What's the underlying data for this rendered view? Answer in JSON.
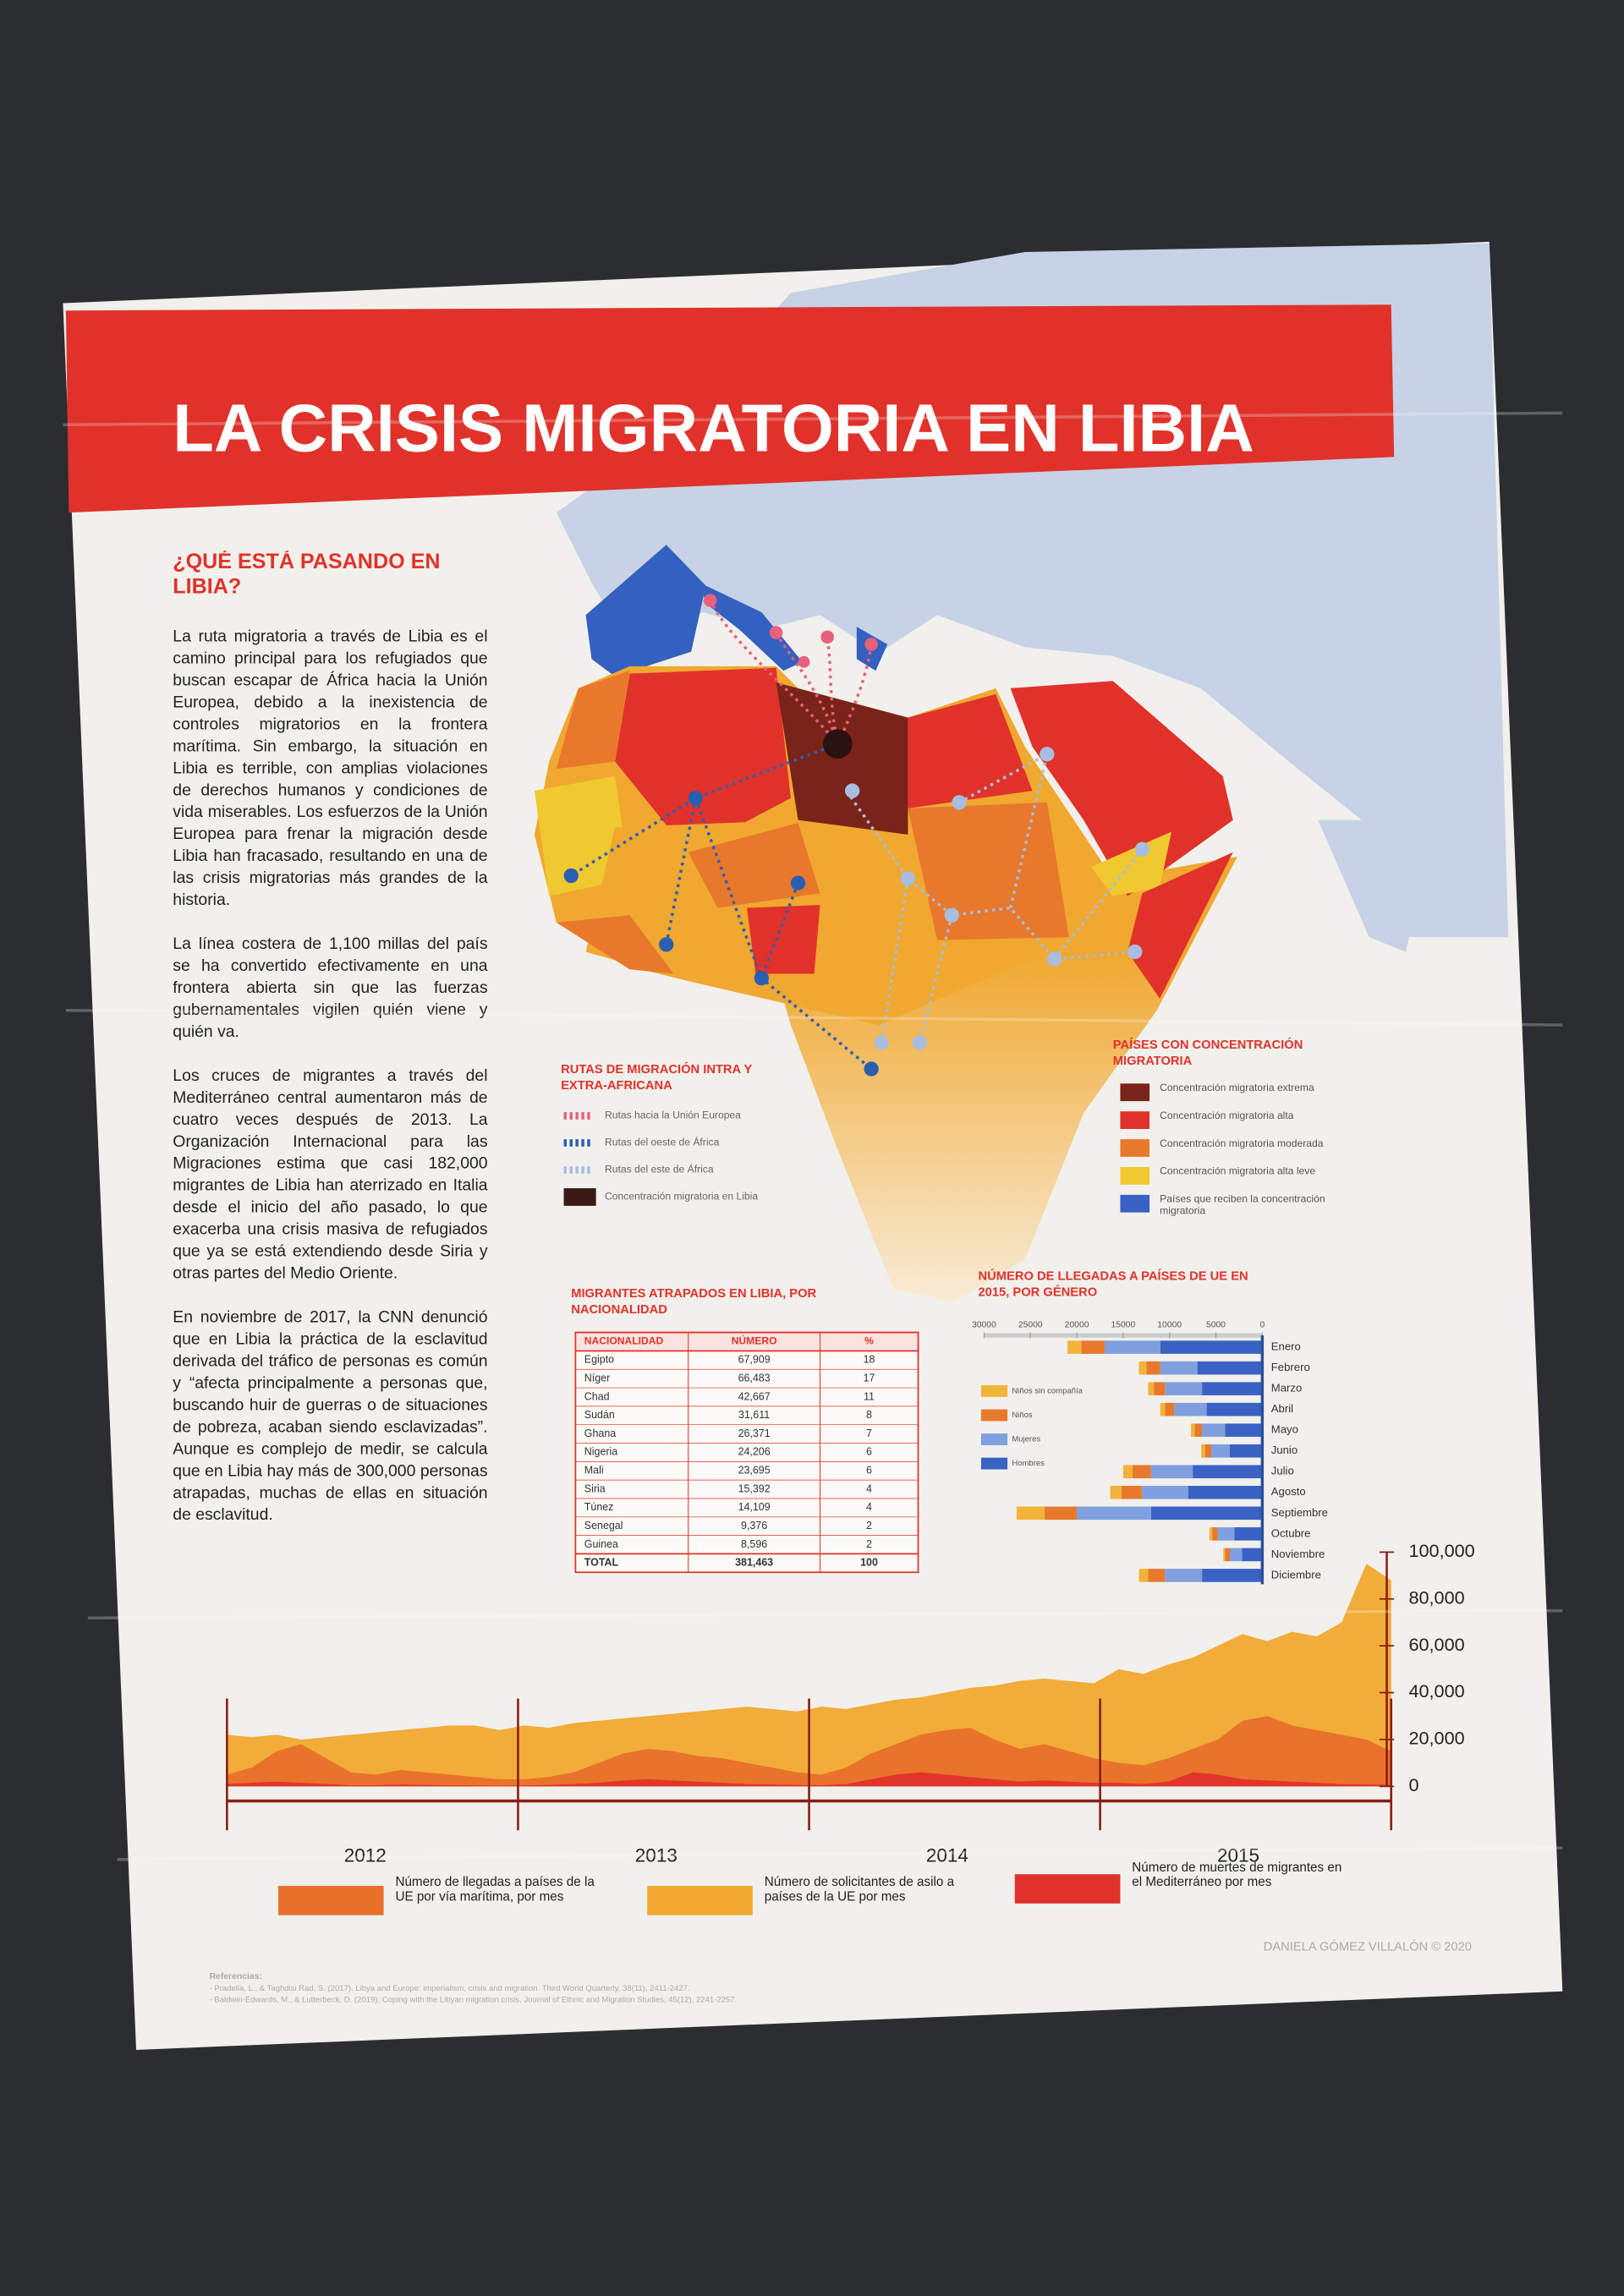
{
  "header": {
    "title": "LA CRISIS MIGRATORIA EN LIBIA"
  },
  "intro": {
    "heading": "¿QUÉ ESTÁ PASANDO EN LIBIA?",
    "paragraphs": [
      "La ruta migratoria a través de Libia es el camino principal para los refugiados que buscan escapar de África hacia la Unión Europea, debido a la inexistencia de controles migratorios en la frontera marítima. Sin embargo, la situación en Libia es terrible, con amplias violaciones de derechos humanos y condiciones de vida miserables. Los esfuerzos de la Unión Europea para frenar la migración desde Libia han fracasado, resultando en una de las crisis migratorias más grandes de la historia.",
      "La línea costera de 1,100 millas del país se ha convertido efectivamente en una frontera abierta sin que las fuerzas gubernamentales vigilen quién viene y quién va.",
      "Los cruces de migrantes a través del Mediterráneo central aumentaron más de cuatro veces después de 2013. La Organización Internacional para las Migraciones estima que casi 182,000 migrantes de Libia han aterrizado en Italia desde el inicio del año pasado, lo que exacerba una crisis masiva de refugiados que ya se está extendiendo desde Siria y otras partes del Medio Oriente.",
      "En noviembre de 2017, la CNN denunció que en Libia la práctica de la esclavitud derivada del tráfico de personas es común y “afecta principalmente a personas que, buscando huir de guerras o de situaciones de pobreza, acaban siendo esclavizadas”. Aunque es complejo de medir, se calcula que en Libia hay más de 300,000 personas atrapadas, muchas de ellas en situación de esclavitud."
    ]
  },
  "map": {
    "routes_legend": {
      "title": "RUTAS DE MIGRACIÓN INTRA Y EXTRA-AFRICANA",
      "items": [
        {
          "label": "Rutas hacia la Unión Europea",
          "color": "#e8607a"
        },
        {
          "label": "Rutas del oeste de África",
          "color": "#2a5fb0"
        },
        {
          "label": "Rutas del este de África",
          "color": "#a8bde0"
        },
        {
          "label": "Concentración migratoria en Libia",
          "color": "#3a1a14"
        }
      ]
    },
    "countries_legend": {
      "title": "PAÍSES CON CONCENTRACIÓN MIGRATORIA",
      "items": [
        {
          "label": "Concentración migratoria extrema",
          "color": "#7a2318"
        },
        {
          "label": "Concentración migratoria alta",
          "color": "#e0322a"
        },
        {
          "label": "Concentración migratoria moderada",
          "color": "#e8782c"
        },
        {
          "label": "Concentración migratoria alta leve",
          "color": "#f0c830"
        },
        {
          "label": "Países que reciben la concentración migratoria",
          "color": "#3a62c4"
        }
      ]
    }
  },
  "table": {
    "title": "MIGRANTES ATRAPADOS EN LIBIA, POR NACIONALIDAD",
    "header": [
      "NACIONALIDAD",
      "NÚMERO",
      "%"
    ],
    "rows": [
      [
        "Egipto",
        "67,909",
        "18"
      ],
      [
        "Níger",
        "66,483",
        "17"
      ],
      [
        "Chad",
        "42,667",
        "11"
      ],
      [
        "Sudán",
        "31,611",
        "8"
      ],
      [
        "Ghana",
        "26,371",
        "7"
      ],
      [
        "Nigeria",
        "24,206",
        "6"
      ],
      [
        "Mali",
        "23,695",
        "6"
      ],
      [
        "Siria",
        "15,392",
        "4"
      ],
      [
        "Túnez",
        "14,109",
        "4"
      ],
      [
        "Senegal",
        "9,376",
        "2"
      ],
      [
        "Guinea",
        "8,596",
        "2"
      ],
      [
        "TOTAL",
        "381,463",
        "100"
      ]
    ]
  },
  "chart_data": [
    {
      "type": "bar",
      "title": "NÚMERO DE LLEGADAS A PAÍSES DE UE EN 2015, POR GÉNERO",
      "stacked": true,
      "x_reversed": true,
      "categories": [
        "Enero",
        "Febrero",
        "Marzo",
        "Abril",
        "Mayo",
        "Junio",
        "Julio",
        "Agosto",
        "Septiembre",
        "Octubre",
        "Noviembre",
        "Diciembre"
      ],
      "series": [
        {
          "name": "Niños sin compañía",
          "color": "#f2b33a",
          "values": [
            1500,
            800,
            600,
            500,
            400,
            400,
            1000,
            1200,
            3000,
            300,
            200,
            1000
          ]
        },
        {
          "name": "Niños",
          "color": "#e8782c",
          "values": [
            2500,
            1500,
            1200,
            1000,
            800,
            700,
            2000,
            2200,
            3500,
            600,
            500,
            1800
          ]
        },
        {
          "name": "Mujeres",
          "color": "#7f9fde",
          "values": [
            6000,
            4000,
            4000,
            3500,
            2500,
            2000,
            4500,
            5000,
            8000,
            1800,
            1300,
            4000
          ]
        },
        {
          "name": "Hombres",
          "color": "#3a62c4",
          "values": [
            11000,
            7000,
            6500,
            6000,
            4000,
            3500,
            7500,
            8000,
            12000,
            3000,
            2200,
            6500
          ]
        }
      ],
      "xlim": [
        0,
        30000
      ],
      "xticks": [
        30000,
        25000,
        20000,
        15000,
        10000,
        5000,
        0
      ]
    },
    {
      "type": "area",
      "years": [
        "2012",
        "2013",
        "2014",
        "2015"
      ],
      "series": [
        {
          "name": "Número de solicitantes de asilo a países de la UE por mes",
          "color": "#f0a830",
          "values": [
            22000,
            21000,
            22000,
            20000,
            21000,
            22000,
            23000,
            24000,
            25000,
            26000,
            26000,
            24000,
            26000,
            25000,
            27000,
            28000,
            29000,
            30000,
            31000,
            32000,
            33000,
            34000,
            33000,
            32000,
            34000,
            33000,
            35000,
            37000,
            38000,
            40000,
            42000,
            43000,
            45000,
            46000,
            45000,
            44000,
            50000,
            48000,
            52000,
            55000,
            60000,
            65000,
            62000,
            66000,
            64000,
            70000,
            95000,
            88000
          ]
        },
        {
          "name": "Número de llegadas a países de la UE por vía marítima, por mes",
          "color": "#e8702a",
          "values": [
            5000,
            8000,
            15000,
            18000,
            12000,
            6000,
            5000,
            7000,
            6000,
            5000,
            4000,
            3000,
            3000,
            4000,
            6000,
            10000,
            14000,
            16000,
            15000,
            13000,
            12000,
            10000,
            8000,
            6000,
            5000,
            8000,
            14000,
            18000,
            22000,
            24000,
            25000,
            20000,
            16000,
            18000,
            15000,
            12000,
            10000,
            9000,
            12000,
            16000,
            20000,
            28000,
            30000,
            26000,
            24000,
            22000,
            20000,
            15000
          ]
        },
        {
          "name": "Número de muertes de migrantes en el Mediterráneo por mes",
          "color": "#e0322a",
          "values": [
            1000,
            1500,
            2000,
            1500,
            1000,
            500,
            500,
            800,
            600,
            500,
            400,
            300,
            400,
            600,
            1000,
            1500,
            2500,
            3000,
            2500,
            2000,
            1500,
            1000,
            800,
            600,
            500,
            1000,
            3000,
            5000,
            6000,
            5000,
            4000,
            3000,
            2000,
            2500,
            2000,
            1500,
            1500,
            1000,
            2000,
            6000,
            5000,
            3000,
            2500,
            2000,
            1500,
            1000,
            800,
            600
          ]
        }
      ],
      "ylim": [
        0,
        100000
      ],
      "yticks": [
        0,
        {
          "value": 20000,
          "label": "20,000"
        },
        {
          "value": 40000,
          "label": "40,000"
        },
        {
          "value": 60000,
          "label": "60,000"
        },
        {
          "value": 80000,
          "label": "80,000"
        },
        {
          "value": 100000,
          "label": "100,000"
        }
      ]
    }
  ],
  "footer": {
    "author": "DANIELA GÓMEZ VILLALÓN © 2020",
    "references_title": "Referencias:",
    "references": [
      "- Pradella, L., & Taghdisi Rad, S. (2017). Libya and Europe: imperialism, crisis and migration. Third World Quarterly, 38(11), 2411-2427.",
      "- Baldwin-Edwards, M., & Lutterbeck, D. (2019). Coping with the Libyan migration crisis. Journal of Ethnic and Migration Studies, 45(12), 2241-2257."
    ]
  }
}
